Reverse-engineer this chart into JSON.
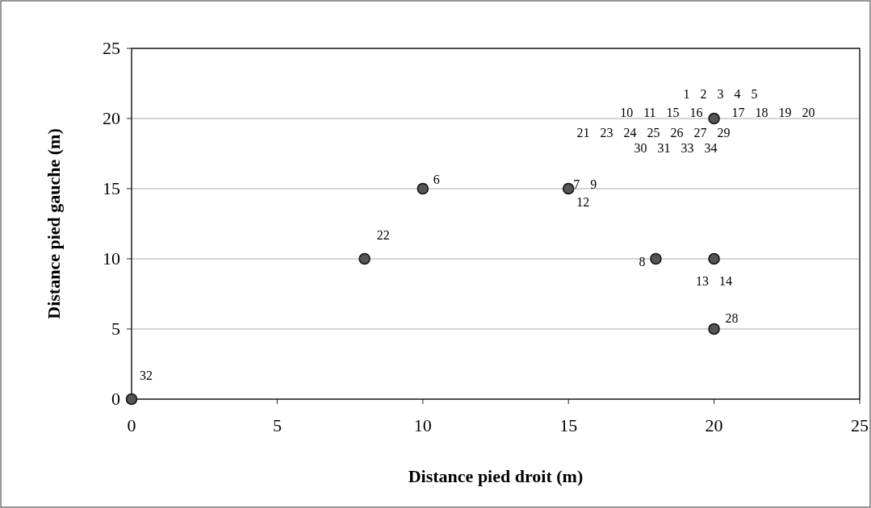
{
  "chart_data": {
    "type": "scatter",
    "xlabel": "Distance pied droit (m)",
    "ylabel": "Distance pied gauche (m)",
    "x": [
      0,
      8,
      10,
      15,
      18,
      20,
      20,
      20
    ],
    "series": [
      {
        "color": "#555555",
        "values": [
          0,
          10,
          15,
          15,
          10,
          10,
          5,
          20
        ]
      }
    ],
    "xlim": [
      0,
      25
    ],
    "ylim": [
      0,
      25
    ],
    "xticks": [
      0,
      5,
      10,
      15,
      20,
      25
    ],
    "yticks": [
      0,
      5,
      10,
      15,
      20,
      25
    ],
    "grid": "y",
    "marker": "circle",
    "annotations": [
      {
        "text": "32",
        "x": 0,
        "y": 0
      },
      {
        "text": "22",
        "x": 8,
        "y": 10
      },
      {
        "text": "6",
        "x": 10,
        "y": 15
      },
      {
        "text": "7 9",
        "x": 15,
        "y": 15
      },
      {
        "text": "12",
        "x": 15,
        "y": 15
      },
      {
        "text": "8",
        "x": 18,
        "y": 10
      },
      {
        "text": "13 14",
        "x": 20,
        "y": 10
      },
      {
        "text": "28",
        "x": 20,
        "y": 5
      },
      {
        "text": "1 2 3 4 5",
        "x": 20,
        "y": 20
      },
      {
        "text": "10 11 15 16",
        "x": 20,
        "y": 20
      },
      {
        "text": "17 18 19 20",
        "x": 20,
        "y": 20
      },
      {
        "text": "21 23 24 25 26 27 29",
        "x": 20,
        "y": 20
      },
      {
        "text": "30 31 33 34",
        "x": 20,
        "y": 20
      }
    ]
  }
}
